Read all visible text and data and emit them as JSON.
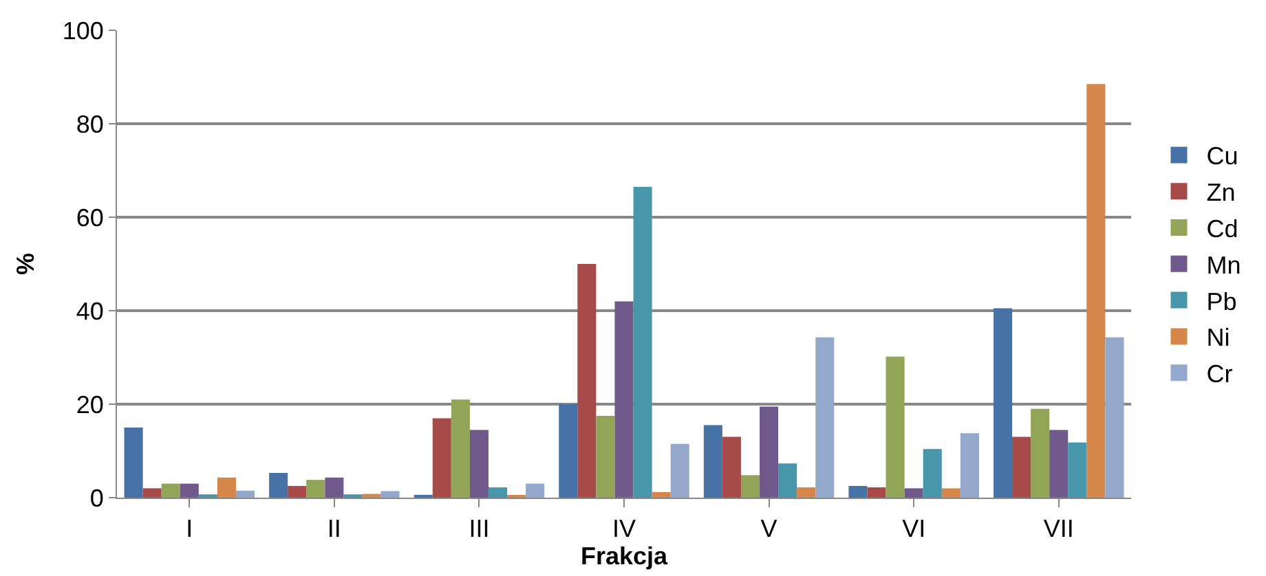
{
  "chart_data": {
    "type": "bar",
    "xlabel": "Frakcja",
    "ylabel": "%",
    "categories": [
      "I",
      "II",
      "III",
      "IV",
      "V",
      "VI",
      "VII"
    ],
    "ylim": [
      0,
      100
    ],
    "yticks": [
      0,
      20,
      40,
      60,
      80,
      100
    ],
    "grid": "y",
    "legend": "right",
    "series": [
      {
        "name": "Cu",
        "color": "#4672a6",
        "values": [
          15,
          5.3,
          0.6,
          20,
          15.5,
          2.5,
          40.5
        ]
      },
      {
        "name": "Zn",
        "color": "#a64b49",
        "values": [
          2,
          2.5,
          17,
          50,
          13,
          2.2,
          13
        ]
      },
      {
        "name": "Cd",
        "color": "#92a457",
        "values": [
          3,
          3.8,
          21,
          17.5,
          4.8,
          30.2,
          19
        ]
      },
      {
        "name": "Mn",
        "color": "#705a8c",
        "values": [
          3,
          4.3,
          14.5,
          42,
          19.5,
          2,
          14.5
        ]
      },
      {
        "name": "Pb",
        "color": "#4796aa",
        "values": [
          0.7,
          0.7,
          2.2,
          66.5,
          7.3,
          10.4,
          11.8
        ]
      },
      {
        "name": "Ni",
        "color": "#d5864a",
        "values": [
          4.3,
          0.8,
          0.5,
          1.2,
          2.2,
          2,
          88.5
        ]
      },
      {
        "name": "Cr",
        "color": "#94a8cb",
        "values": [
          1.5,
          1.4,
          3,
          11.5,
          34.3,
          13.8,
          34.3
        ]
      }
    ]
  }
}
